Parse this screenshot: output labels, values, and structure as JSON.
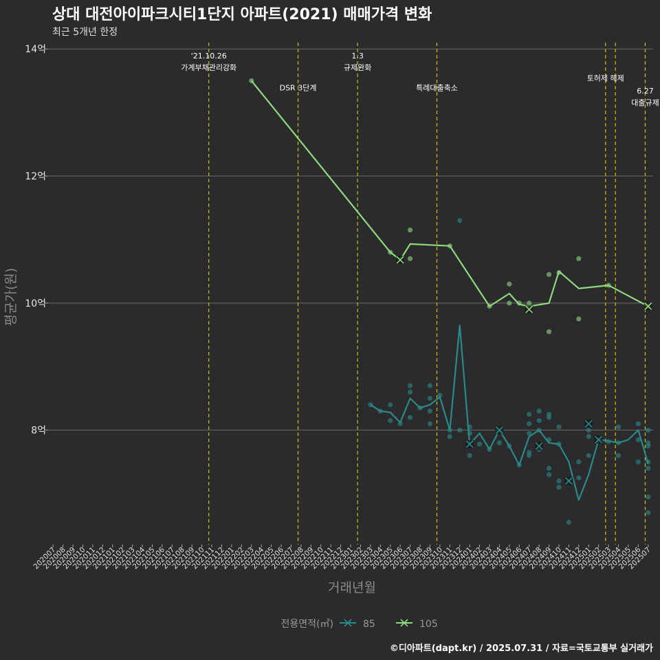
{
  "chart_data": {
    "type": "line",
    "title": "상대 대전아이파크시티1단지 아파트(2021) 매매가격 변화",
    "subtitle": "최근 5개년 한정",
    "xlabel": "거래년월",
    "ylabel": "평균가(원)",
    "caption": "©디아파트(dapt.kr) / 2025.07.31 / 자료=국토교통부 실거래가",
    "legend_title": "전용면적(㎡)",
    "legend_position": "bottom",
    "grid": true,
    "ylim": [
      6.2,
      14.1
    ],
    "yticks": [
      {
        "v": 8,
        "label": "8억"
      },
      {
        "v": 10,
        "label": "10억"
      },
      {
        "v": 12,
        "label": "12억"
      },
      {
        "v": 14,
        "label": "14억"
      }
    ],
    "categories": [
      "202007",
      "202008",
      "202009",
      "202010",
      "202011",
      "202012",
      "202101",
      "202102",
      "202103",
      "202104",
      "202105",
      "202106",
      "202107",
      "202108",
      "202109",
      "202110",
      "202111",
      "202112",
      "202201",
      "202202",
      "202203",
      "202204",
      "202205",
      "202206",
      "202207",
      "202208",
      "202209",
      "202210",
      "202211",
      "202212",
      "202301",
      "202302",
      "202303",
      "202304",
      "202305",
      "202306",
      "202307",
      "202308",
      "202309",
      "202310",
      "202311",
      "202312",
      "202401",
      "202402",
      "202403",
      "202404",
      "202405",
      "202406",
      "202407",
      "202408",
      "202409",
      "202410",
      "202411",
      "202412",
      "202501",
      "202502",
      "202503",
      "202504",
      "202505",
      "202506",
      "202507"
    ],
    "policy_lines": [
      {
        "x": 15.7,
        "lines": [
          "'21.10.26",
          "가계부채관리강화"
        ],
        "label_y": 13.85
      },
      {
        "x": 24.7,
        "lines": [
          "DSR 3단계"
        ],
        "label_y": 13.35
      },
      {
        "x": 30.7,
        "lines": [
          "1.3",
          "규제완화"
        ],
        "label_y": 13.85
      },
      {
        "x": 38.7,
        "lines": [
          "특례대출축소"
        ],
        "label_y": 13.35
      },
      {
        "x": 55.7,
        "lines": [
          "토허제 해제"
        ],
        "label_y": 13.5
      },
      {
        "x": 56.7,
        "lines": [],
        "label_y": 13.5
      },
      {
        "x": 59.7,
        "lines": [
          "6.27",
          "대출규제"
        ],
        "label_y": 13.3
      }
    ],
    "series": [
      {
        "name": "85",
        "color": "#2a8a8a",
        "line_x": [
          32,
          33,
          34,
          35,
          36,
          37,
          38,
          39,
          40,
          41,
          42,
          43,
          44,
          45,
          46,
          47,
          48,
          49,
          50,
          51,
          52,
          53,
          54,
          55,
          56,
          57,
          58,
          59,
          60
        ],
        "line_y": [
          8.4,
          8.3,
          8.28,
          8.12,
          8.5,
          8.35,
          8.4,
          8.52,
          8.0,
          9.65,
          7.78,
          7.95,
          7.7,
          8.0,
          7.75,
          7.45,
          7.9,
          8.0,
          7.8,
          7.78,
          7.5,
          6.9,
          7.3,
          7.85,
          7.83,
          7.8,
          7.85,
          8.0,
          7.47
        ],
        "points": [
          [
            32,
            8.4
          ],
          [
            33,
            8.3
          ],
          [
            34,
            8.4
          ],
          [
            34,
            8.15
          ],
          [
            35,
            8.1
          ],
          [
            36,
            8.7
          ],
          [
            36,
            8.6
          ],
          [
            36,
            8.2
          ],
          [
            37,
            8.35
          ],
          [
            38,
            8.7
          ],
          [
            38,
            8.5
          ],
          [
            38,
            8.3
          ],
          [
            38,
            8.1
          ],
          [
            39,
            8.55
          ],
          [
            40,
            8.0
          ],
          [
            40,
            7.9
          ],
          [
            41,
            11.3
          ],
          [
            41,
            8.0
          ],
          [
            42,
            8.05
          ],
          [
            42,
            7.95
          ],
          [
            42,
            7.6
          ],
          [
            43,
            7.78
          ],
          [
            44,
            7.7
          ],
          [
            45,
            8.0
          ],
          [
            45,
            7.8
          ],
          [
            46,
            7.75
          ],
          [
            47,
            7.45
          ],
          [
            48,
            8.25
          ],
          [
            48,
            8.1
          ],
          [
            48,
            7.95
          ],
          [
            48,
            7.65
          ],
          [
            48,
            7.6
          ],
          [
            49,
            8.3
          ],
          [
            49,
            8.15
          ],
          [
            49,
            8.0
          ],
          [
            49,
            7.7
          ],
          [
            50,
            8.25
          ],
          [
            50,
            8.2
          ],
          [
            50,
            7.85
          ],
          [
            50,
            7.4
          ],
          [
            50,
            7.3
          ],
          [
            51,
            8.05
          ],
          [
            51,
            7.2
          ],
          [
            51,
            7.1
          ],
          [
            51,
            7.78
          ],
          [
            52,
            7.2
          ],
          [
            52,
            6.55
          ],
          [
            53,
            7.5
          ],
          [
            53,
            7.25
          ],
          [
            54,
            8.0
          ],
          [
            54,
            7.9
          ],
          [
            54,
            7.6
          ],
          [
            55,
            7.85
          ],
          [
            56,
            7.82
          ],
          [
            57,
            8.05
          ],
          [
            57,
            7.8
          ],
          [
            57,
            7.6
          ],
          [
            59,
            8.1
          ],
          [
            59,
            7.85
          ],
          [
            59,
            7.5
          ],
          [
            60,
            8.0
          ],
          [
            60,
            7.75
          ],
          [
            60,
            7.5
          ],
          [
            60,
            7.4
          ],
          [
            60,
            6.95
          ],
          [
            60,
            6.7
          ],
          [
            60,
            7.8
          ]
        ],
        "cross_markers": [
          [
            42,
            7.78
          ],
          [
            45,
            8.0
          ],
          [
            49,
            7.75
          ],
          [
            52,
            7.2
          ],
          [
            54,
            8.1
          ],
          [
            55,
            7.85
          ]
        ]
      },
      {
        "name": "105",
        "color": "#8fd97e",
        "line_x": [
          20,
          34,
          35,
          36,
          40,
          44,
          46,
          47,
          48,
          50,
          51,
          53,
          56,
          60
        ],
        "line_y": [
          13.5,
          10.8,
          10.68,
          10.93,
          10.9,
          9.95,
          10.15,
          9.98,
          9.95,
          10.0,
          10.5,
          10.23,
          10.28,
          9.95
        ],
        "points": [
          [
            20,
            13.5
          ],
          [
            34,
            10.8
          ],
          [
            36,
            11.15
          ],
          [
            36,
            10.7
          ],
          [
            40,
            10.9
          ],
          [
            44,
            9.95
          ],
          [
            46,
            10.3
          ],
          [
            46,
            10.0
          ],
          [
            47,
            10.0
          ],
          [
            48,
            10.0
          ],
          [
            50,
            10.45
          ],
          [
            50,
            9.55
          ],
          [
            51,
            10.48
          ],
          [
            53,
            10.7
          ],
          [
            53,
            9.75
          ],
          [
            56,
            10.28
          ],
          [
            60,
            9.95
          ]
        ],
        "cross_markers": [
          [
            35,
            10.68
          ],
          [
            48,
            9.9
          ],
          [
            60,
            9.95
          ]
        ]
      }
    ]
  }
}
